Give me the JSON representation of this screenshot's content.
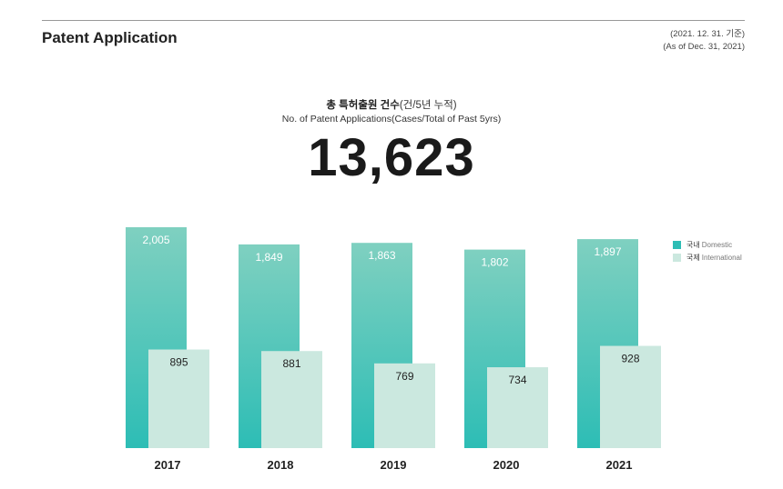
{
  "header": {
    "title": "Patent Application",
    "asof_ko": "(2021. 12. 31. 기준)",
    "asof_en": "(As of Dec. 31, 2021)"
  },
  "summary": {
    "label_ko_bold": "총 특허출원 건수",
    "label_ko_rest": "(건/5년 누적)",
    "label_en": "No. of Patent Applications(Cases/Total of Past 5yrs)",
    "total": "13,623"
  },
  "chart_data": {
    "type": "bar",
    "categories": [
      "2017",
      "2018",
      "2019",
      "2020",
      "2021"
    ],
    "series": [
      {
        "name": "국내 Domestic",
        "name_ko": "국내",
        "name_en": "Domestic",
        "color": "#2dbdb5",
        "values": [
          2005,
          1849,
          1863,
          1802,
          1897
        ],
        "labels": [
          "2,005",
          "1,849",
          "1,863",
          "1,802",
          "1,897"
        ]
      },
      {
        "name": "국제 International",
        "name_ko": "국제",
        "name_en": "International",
        "color": "#cbe8df",
        "values": [
          895,
          881,
          769,
          734,
          928
        ],
        "labels": [
          "895",
          "881",
          "769",
          "734",
          "928"
        ]
      }
    ],
    "legend": "right",
    "grid": false
  }
}
